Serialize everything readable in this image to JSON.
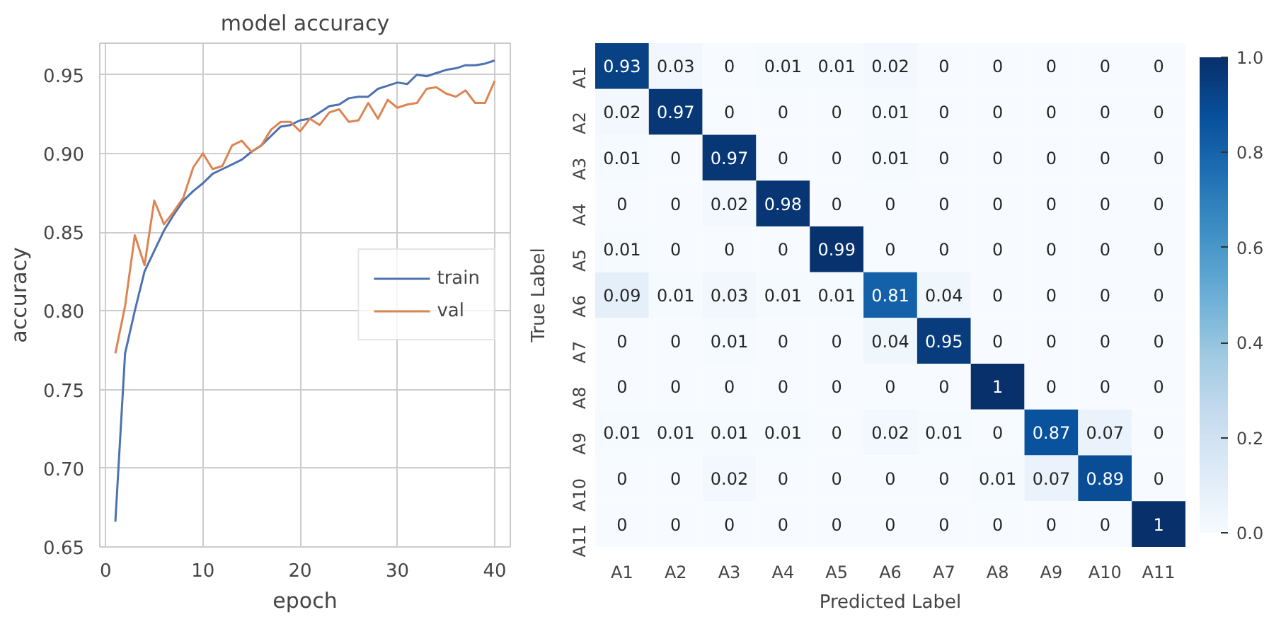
{
  "chart_data": [
    {
      "type": "line",
      "title": "model accuracy",
      "xlabel": "epoch",
      "ylabel": "accuracy",
      "x": [
        1,
        2,
        3,
        4,
        5,
        6,
        7,
        8,
        9,
        10,
        11,
        12,
        13,
        14,
        15,
        16,
        17,
        18,
        19,
        20,
        21,
        22,
        23,
        24,
        25,
        26,
        27,
        28,
        29,
        30,
        31,
        32,
        33,
        34,
        35,
        36,
        37,
        38,
        39,
        40
      ],
      "series": [
        {
          "name": "train",
          "color": "#4c72b0",
          "values": [
            0.666,
            0.773,
            0.8,
            0.825,
            0.838,
            0.851,
            0.861,
            0.87,
            0.876,
            0.881,
            0.887,
            0.89,
            0.893,
            0.896,
            0.901,
            0.905,
            0.911,
            0.917,
            0.918,
            0.921,
            0.922,
            0.926,
            0.93,
            0.931,
            0.935,
            0.936,
            0.936,
            0.941,
            0.943,
            0.945,
            0.944,
            0.95,
            0.949,
            0.951,
            0.953,
            0.954,
            0.956,
            0.956,
            0.957,
            0.959
          ]
        },
        {
          "name": "val",
          "color": "#dd8452",
          "values": [
            0.773,
            0.803,
            0.848,
            0.829,
            0.87,
            0.855,
            0.863,
            0.872,
            0.891,
            0.9,
            0.89,
            0.892,
            0.905,
            0.908,
            0.901,
            0.905,
            0.915,
            0.92,
            0.92,
            0.914,
            0.922,
            0.918,
            0.926,
            0.928,
            0.92,
            0.921,
            0.932,
            0.922,
            0.934,
            0.929,
            0.931,
            0.932,
            0.941,
            0.942,
            0.938,
            0.936,
            0.94,
            0.932,
            0.932,
            0.946
          ]
        }
      ],
      "xlim": [
        -0.6,
        41.6
      ],
      "ylim": [
        0.65,
        0.97
      ],
      "xticks": [
        0,
        10,
        20,
        30,
        40
      ],
      "yticks": [
        0.65,
        {
          "value": 0.7,
          "label": "0.70"
        },
        0.75,
        {
          "value": 0.8,
          "label": "0.80"
        },
        0.85,
        {
          "value": 0.9,
          "label": "0.90"
        },
        0.95
      ],
      "grid": true,
      "legend": "right",
      "line_style": "solid"
    },
    {
      "type": "heatmap",
      "xlabel": "Predicted Label",
      "ylabel": "True Label",
      "categories": [
        "A1",
        "A2",
        "A3",
        "A4",
        "A5",
        "A6",
        "A7",
        "A8",
        "A9",
        "A10",
        "A11"
      ],
      "y_categories": [
        "A1",
        "A2",
        "A3",
        "A4",
        "A5",
        "A6",
        "A7",
        "A8",
        "A9",
        "A10",
        "A11"
      ],
      "cells": [
        [
          0.93,
          0.03,
          0,
          0.01,
          0.01,
          0.02,
          0,
          0,
          0,
          0,
          0
        ],
        [
          0.02,
          0.97,
          0,
          0,
          0,
          0.01,
          0,
          0,
          0,
          0,
          0
        ],
        [
          0.01,
          0,
          0.97,
          0,
          0,
          0.01,
          0,
          0,
          0,
          0,
          0
        ],
        [
          0,
          0,
          0.02,
          0.98,
          0,
          0,
          0,
          0,
          0,
          0,
          0
        ],
        [
          0.01,
          0,
          0,
          0,
          0.99,
          0,
          0,
          0,
          0,
          0,
          0
        ],
        [
          0.09,
          0.01,
          0.03,
          0.01,
          0.01,
          0.81,
          0.04,
          0,
          0,
          0,
          0
        ],
        [
          0,
          0,
          0.01,
          0,
          0,
          0.04,
          0.95,
          0,
          0,
          0,
          0
        ],
        [
          0,
          0,
          0,
          0,
          0,
          0,
          0,
          1,
          0,
          0,
          0
        ],
        [
          0.01,
          0.01,
          0.01,
          0.01,
          0,
          0.02,
          0.01,
          0,
          0.87,
          0.07,
          0
        ],
        [
          0,
          0,
          0.02,
          0,
          0,
          0,
          0,
          0.01,
          0.07,
          0.89,
          0
        ],
        [
          0,
          0,
          0,
          0,
          0,
          0,
          0,
          0,
          0,
          0,
          1
        ]
      ],
      "clim": [
        0,
        1
      ],
      "cticks": [
        {
          "value": 0,
          "label": "0.0"
        },
        0.2,
        0.4,
        0.6,
        0.8,
        {
          "value": 1,
          "label": "1.0"
        }
      ],
      "data_labels": true
    }
  ]
}
